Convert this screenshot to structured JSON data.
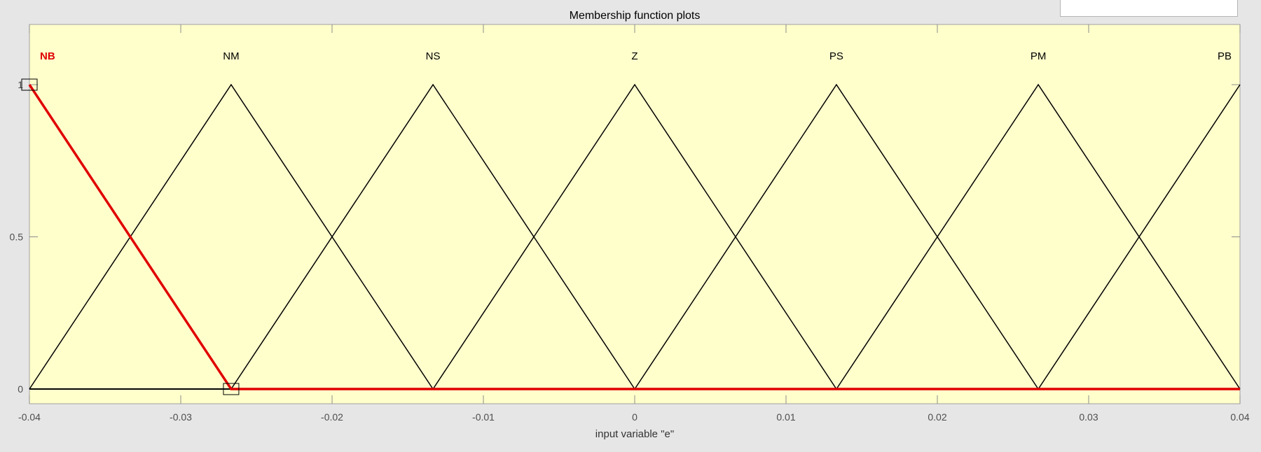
{
  "range_box": {
    "value": ""
  },
  "chart_data": {
    "type": "line",
    "title": "Membership function plots",
    "xlabel": "input variable \"e\"",
    "ylabel": "",
    "xlim": [
      -0.04,
      0.04
    ],
    "ylim": [
      0,
      1.2
    ],
    "x_ticks": [
      -0.04,
      -0.03,
      -0.02,
      -0.01,
      0,
      0.01,
      0.02,
      0.03,
      0.04
    ],
    "x_tick_labels": [
      "-0.04",
      "-0.03",
      "-0.02",
      "-0.01",
      "0",
      "0.01",
      "0.02",
      "0.03",
      "0.04"
    ],
    "y_ticks": [
      0,
      0.5,
      1
    ],
    "y_tick_labels": [
      "0",
      "0.5",
      "1"
    ],
    "grid": false,
    "background": "#ffffcc",
    "line_color": "#000000",
    "selected_color": "#e00000",
    "selected": "NB",
    "series": [
      {
        "name": "NB",
        "points": [
          [
            -0.04,
            1
          ],
          [
            -0.02667,
            0
          ]
        ],
        "peak": -0.04
      },
      {
        "name": "NM",
        "points": [
          [
            -0.04,
            0
          ],
          [
            -0.02667,
            1
          ],
          [
            -0.01333,
            0
          ]
        ],
        "peak": -0.02667
      },
      {
        "name": "NS",
        "points": [
          [
            -0.02667,
            0
          ],
          [
            -0.01333,
            1
          ],
          [
            0,
            0
          ]
        ],
        "peak": -0.01333
      },
      {
        "name": "Z",
        "points": [
          [
            -0.01333,
            0
          ],
          [
            0,
            1
          ],
          [
            0.01333,
            0
          ]
        ],
        "peak": 0
      },
      {
        "name": "PS",
        "points": [
          [
            0,
            0
          ],
          [
            0.01333,
            1
          ],
          [
            0.02667,
            0
          ]
        ],
        "peak": 0.01333
      },
      {
        "name": "PM",
        "points": [
          [
            0.01333,
            0
          ],
          [
            0.02667,
            1
          ],
          [
            0.04,
            0
          ]
        ],
        "peak": 0.02667
      },
      {
        "name": "PB",
        "points": [
          [
            0.02667,
            0
          ],
          [
            0.04,
            1
          ]
        ],
        "peak": 0.04
      }
    ]
  }
}
